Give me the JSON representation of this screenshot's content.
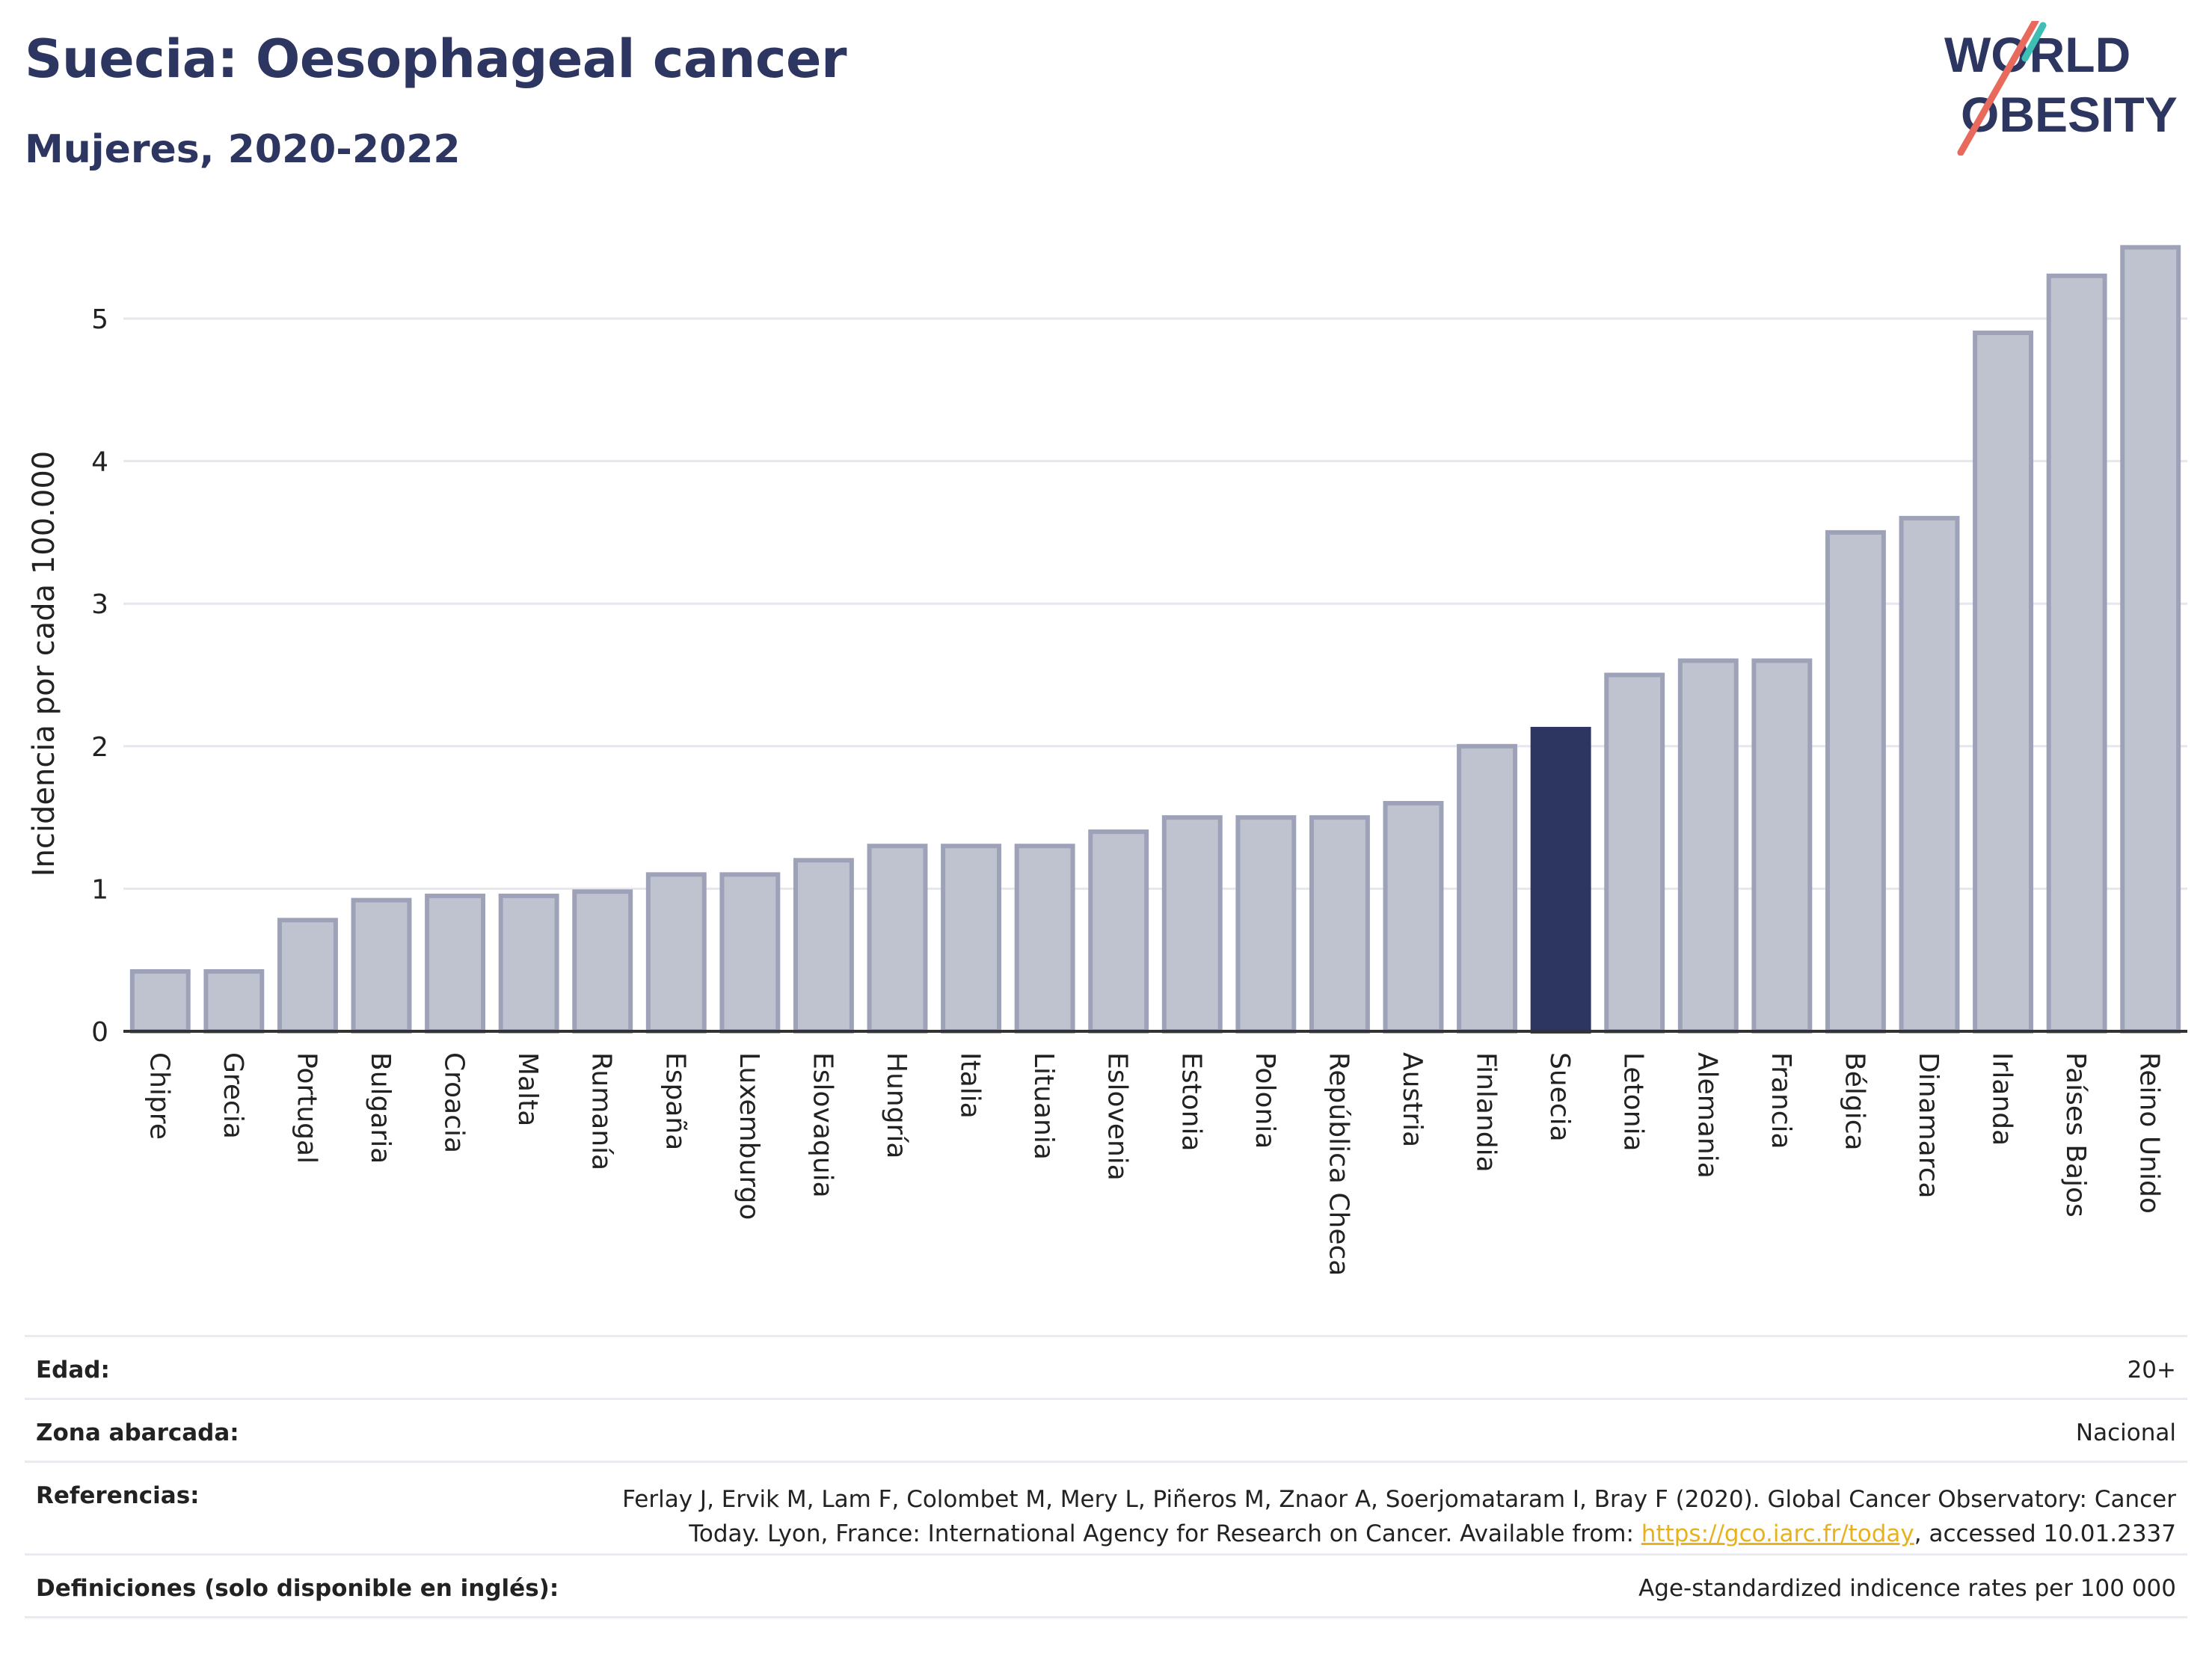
{
  "header": {
    "title": "Suecia: Oesophageal cancer",
    "subtitle": "Mujeres, 2020-2022"
  },
  "logo": {
    "line1": "WORLD",
    "line2": "OBESITY"
  },
  "chart_data": {
    "type": "bar",
    "title": "Suecia: Oesophageal cancer",
    "subtitle": "Mujeres, 2020-2022",
    "ylabel": "Incidencia por cada 100.000",
    "xlabel": "",
    "ylim": [
      0,
      5.6
    ],
    "yticks": [
      0,
      1,
      2,
      3,
      4,
      5
    ],
    "grid": true,
    "highlight": "Suecia",
    "colors": {
      "bar": "#bfc2cf",
      "bar_edge": "#9ea2b8",
      "highlight": "#2d3561",
      "grid": "#e6e6ee"
    },
    "categories": [
      "Chipre",
      "Grecia",
      "Portugal",
      "Bulgaria",
      "Croacia",
      "Malta",
      "Rumanía",
      "España",
      "Luxemburgo",
      "Eslovaquia",
      "Hungría",
      "Italia",
      "Lituania",
      "Eslovenia",
      "Estonia",
      "Polonia",
      "República Checa",
      "Austria",
      "Finlandia",
      "Suecia",
      "Letonia",
      "Alemania",
      "Francia",
      "Bélgica",
      "Dinamarca",
      "Irlanda",
      "Países Bajos",
      "Reino Unido"
    ],
    "values": [
      0.42,
      0.42,
      0.78,
      0.92,
      0.95,
      0.95,
      0.98,
      1.1,
      1.1,
      1.2,
      1.3,
      1.3,
      1.3,
      1.4,
      1.5,
      1.5,
      1.5,
      1.6,
      2.0,
      2.12,
      2.5,
      2.6,
      2.6,
      3.5,
      3.6,
      4.9,
      5.3,
      5.5
    ]
  },
  "meta": {
    "edad_label": "Edad:",
    "edad_value": "20+",
    "zona_label": "Zona abarcada:",
    "zona_value": "Nacional",
    "ref_label": "Referencias:",
    "ref_line1": "Ferlay J, Ervik M, Lam F, Colombet M, Mery L, Piñeros M, Znaor A, Soerjomataram I, Bray F (2020). Global Cancer Observatory: Cancer",
    "ref_line2_pre": "Today. Lyon, France: International Agency for Research on Cancer. Available from: ",
    "ref_link": "https://gco.iarc.fr/today",
    "ref_line2_post": ", accessed 10.01.2337",
    "def_label": "Definiciones (solo disponible en inglés):",
    "def_value": "Age-standardized indicence rates per 100 000"
  }
}
